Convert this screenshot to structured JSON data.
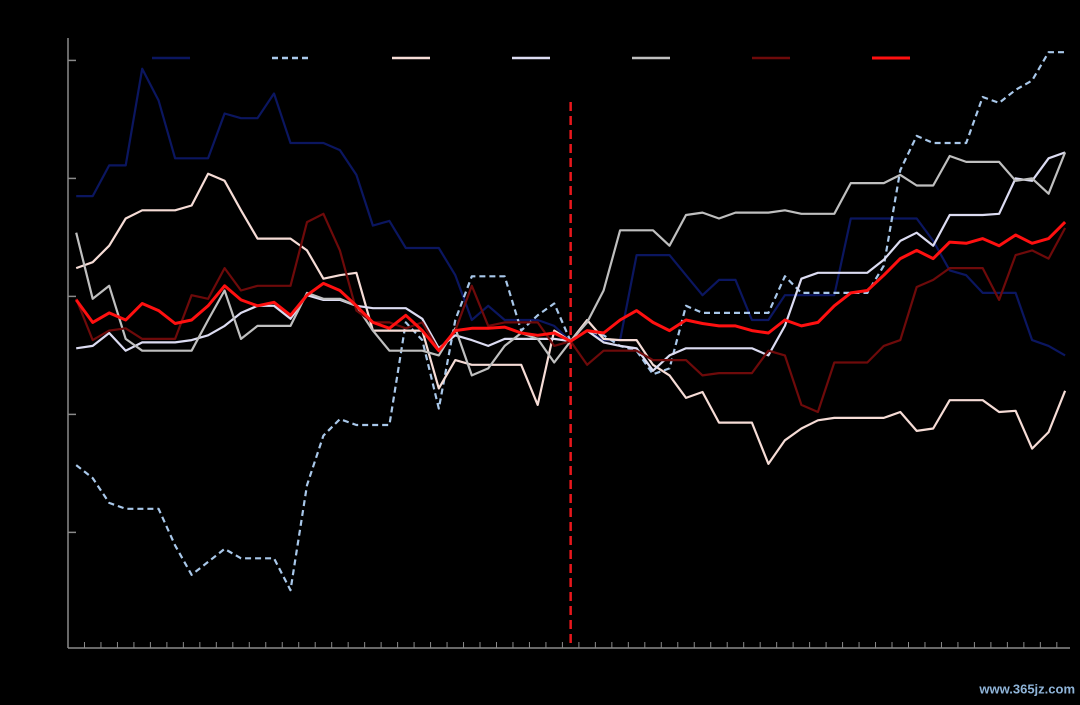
{
  "chart_data": {
    "type": "line",
    "x": [
      -30,
      -29,
      -28,
      -27,
      -26,
      -25,
      -24,
      -23,
      -22,
      -21,
      -20,
      -19,
      -18,
      -17,
      -16,
      -15,
      -14,
      -13,
      -12,
      -11,
      -10,
      -9,
      -8,
      -7,
      -6,
      -5,
      -4,
      -3,
      -2,
      -1,
      0,
      1,
      2,
      3,
      4,
      5,
      6,
      7,
      8,
      9,
      10,
      11,
      12,
      13,
      14,
      15,
      16,
      17,
      18,
      19,
      20,
      21,
      22,
      23,
      24,
      25,
      26,
      27,
      28,
      29,
      30
    ],
    "xlim": [
      -30.5,
      30.3
    ],
    "xticks": [
      -29.5,
      -28.5,
      -27.5,
      -26.5,
      -25.5,
      -24.5,
      -23.5,
      -22.5,
      -21.5,
      -20.5,
      -19.5,
      -18.5,
      -17.5,
      -16.5,
      -15.5,
      -14.5,
      -13.5,
      -12.5,
      -11.5,
      -10.5,
      -9.5,
      -8.5,
      -7.5,
      -6.5,
      -5.5,
      -4.5,
      -3.5,
      -2.5,
      -1.5,
      -0.5,
      0.5,
      1.5,
      2.5,
      3.5,
      4.5,
      5.5,
      6.5,
      7.5,
      8.5,
      9.5,
      10.5,
      11.5,
      12.5,
      13.5,
      14.5,
      15.5,
      16.5,
      17.5,
      18.5,
      19.5,
      20.5,
      21.5,
      22.5,
      23.5,
      24.5,
      25.5,
      26.5,
      27.5,
      28.5,
      29.5
    ],
    "ylim": [
      -29.8,
      21.9
    ],
    "yticks": [
      -20,
      -10,
      0,
      10,
      20
    ],
    "vline": 0,
    "vline_color": "#e8171c",
    "series": [
      {
        "color": "#0b1660",
        "dashed": false,
        "values": [
          8.5,
          8.5,
          11.1,
          11.1,
          19.3,
          16.6,
          11.7,
          11.7,
          11.7,
          15.5,
          15.1,
          15.1,
          17.2,
          13,
          13,
          13,
          12.4,
          10.3,
          6,
          6.4,
          4.1,
          4.1,
          4.1,
          1.8,
          -2,
          -0.8,
          -2,
          -2,
          -2,
          -2.5,
          -3.8,
          -2.9,
          -3.7,
          -3.7,
          3.5,
          3.5,
          3.5,
          1.8,
          0.1,
          1.4,
          1.4,
          -2,
          -2,
          0.1,
          0.1,
          0.1,
          0.1,
          6.6,
          6.6,
          6.6,
          6.6,
          6.6,
          4.7,
          2.2,
          1.8,
          0.3,
          0.3,
          0.3,
          -3.7,
          -4.2,
          -5
        ]
      },
      {
        "color": "#a9c8ea",
        "dashed": true,
        "values": [
          -14.3,
          -15.4,
          -17.5,
          -18,
          -18,
          -18,
          -21.1,
          -23.6,
          -22.5,
          -21.4,
          -22.2,
          -22.2,
          -22.2,
          -24.9,
          -16,
          -11.8,
          -10.4,
          -10.9,
          -10.9,
          -10.9,
          -2.2,
          -3.7,
          -9.5,
          -2,
          1.7,
          1.7,
          1.7,
          -2.9,
          -1.6,
          -0.6,
          -3.8,
          -2.9,
          -3.3,
          -4.2,
          -4.6,
          -6.6,
          -6.1,
          -0.8,
          -1.4,
          -1.4,
          -1.4,
          -1.4,
          -1.4,
          1.7,
          0.3,
          0.3,
          0.3,
          0.3,
          0.3,
          2.6,
          10.7,
          13.6,
          13,
          13,
          13,
          16.9,
          16.4,
          17.5,
          18.3,
          20.7,
          20.7
        ]
      },
      {
        "color": "#f6dcd6",
        "dashed": false,
        "values": [
          2.4,
          2.9,
          4.3,
          6.6,
          7.3,
          7.3,
          7.3,
          7.7,
          10.4,
          9.8,
          7.3,
          4.9,
          4.9,
          4.9,
          3.9,
          1.5,
          1.8,
          2,
          -2.9,
          -2.9,
          -2.9,
          -2.9,
          -7.8,
          -5.4,
          -5.8,
          -5.8,
          -5.8,
          -5.8,
          -9.2,
          -2.9,
          -3.8,
          -2,
          -3.6,
          -3.7,
          -3.7,
          -5.8,
          -6.7,
          -8.6,
          -8.1,
          -10.7,
          -10.7,
          -10.7,
          -14.2,
          -12.2,
          -11.2,
          -10.5,
          -10.3,
          -10.3,
          -10.3,
          -10.3,
          -9.8,
          -11.4,
          -11.2,
          -8.8,
          -8.8,
          -8.8,
          -9.8,
          -9.7,
          -12.9,
          -11.5,
          -8
        ]
      },
      {
        "color": "#dcdcf2",
        "dashed": false,
        "values": [
          -4.4,
          -4.2,
          -3.1,
          -4.6,
          -3.9,
          -3.9,
          -3.9,
          -3.7,
          -3.3,
          -2.5,
          -1.4,
          -0.8,
          -0.8,
          -1.9,
          0.1,
          -0.3,
          -0.3,
          -0.8,
          -1,
          -1,
          -1,
          -1.9,
          -4.4,
          -3.3,
          -3.7,
          -4.2,
          -3.6,
          -3.6,
          -3.6,
          -3.6,
          -3.8,
          -2.9,
          -3.9,
          -4.2,
          -4.4,
          -6.3,
          -5,
          -4.4,
          -4.4,
          -4.4,
          -4.4,
          -4.4,
          -5,
          -2.5,
          1.5,
          2,
          2,
          2,
          2,
          3.1,
          4.7,
          5.4,
          4.3,
          6.9,
          6.9,
          6.9,
          7,
          10,
          9.8,
          11.7,
          12.2
        ]
      },
      {
        "color": "#bfbfbf",
        "dashed": false,
        "values": [
          5.4,
          -0.2,
          0.9,
          -3.6,
          -4.6,
          -4.6,
          -4.6,
          -4.6,
          -2,
          0.5,
          -3.6,
          -2.5,
          -2.5,
          -2.5,
          0.3,
          -0.2,
          -0.2,
          -0.8,
          -2.9,
          -4.6,
          -4.6,
          -4.6,
          -5,
          -2.7,
          -6.7,
          -6.1,
          -4.2,
          -3.1,
          -3.6,
          -5.6,
          -3.8,
          -2.2,
          0.5,
          5.6,
          5.6,
          5.6,
          4.3,
          6.9,
          7.1,
          6.6,
          7.1,
          7.1,
          7.1,
          7.3,
          7,
          7,
          7,
          9.6,
          9.6,
          9.6,
          10.3,
          9.4,
          9.4,
          11.9,
          11.4,
          11.4,
          11.4,
          9.8,
          10,
          8.7,
          12.2
        ]
      },
      {
        "color": "#6e0a0a",
        "dashed": false,
        "values": [
          -0.2,
          -3.7,
          -2.9,
          -2.7,
          -3.6,
          -3.6,
          -3.6,
          0.1,
          -0.2,
          2.4,
          0.5,
          0.9,
          0.9,
          0.9,
          6.3,
          7,
          3.9,
          -1.2,
          -2.2,
          -2.2,
          -2.7,
          -2.2,
          -4.6,
          -2.9,
          0.9,
          -2.5,
          -2.2,
          -2.2,
          -2.2,
          -4.2,
          -3.8,
          -5.8,
          -4.6,
          -4.6,
          -4.6,
          -5.4,
          -5.4,
          -5.4,
          -6.7,
          -6.5,
          -6.5,
          -6.5,
          -4.6,
          -5,
          -9.2,
          -9.8,
          -5.6,
          -5.6,
          -5.6,
          -4.2,
          -3.7,
          0.8,
          1.4,
          2.4,
          2.4,
          2.4,
          -0.3,
          3.5,
          3.9,
          3.2,
          5.8
        ]
      },
      {
        "color": "#ff1010",
        "dashed": false,
        "width": 3,
        "values": [
          -0.3,
          -2.2,
          -1.4,
          -2,
          -0.6,
          -1.2,
          -2.3,
          -2,
          -0.8,
          0.9,
          -0.3,
          -0.8,
          -0.5,
          -1.6,
          0.1,
          1.1,
          0.5,
          -0.8,
          -2.2,
          -2.7,
          -1.6,
          -2.9,
          -4.6,
          -2.9,
          -2.7,
          -2.7,
          -2.6,
          -3.1,
          -3.3,
          -3.1,
          -3.8,
          -2.9,
          -3.1,
          -2,
          -1.2,
          -2.2,
          -2.9,
          -2,
          -2.3,
          -2.5,
          -2.5,
          -2.9,
          -3.1,
          -2,
          -2.5,
          -2.2,
          -0.8,
          0.3,
          0.5,
          1.8,
          3.2,
          3.9,
          3.2,
          4.6,
          4.5,
          4.9,
          4.3,
          5.2,
          4.5,
          4.9,
          6.3
        ]
      }
    ]
  },
  "watermark": "www.365jz.com"
}
